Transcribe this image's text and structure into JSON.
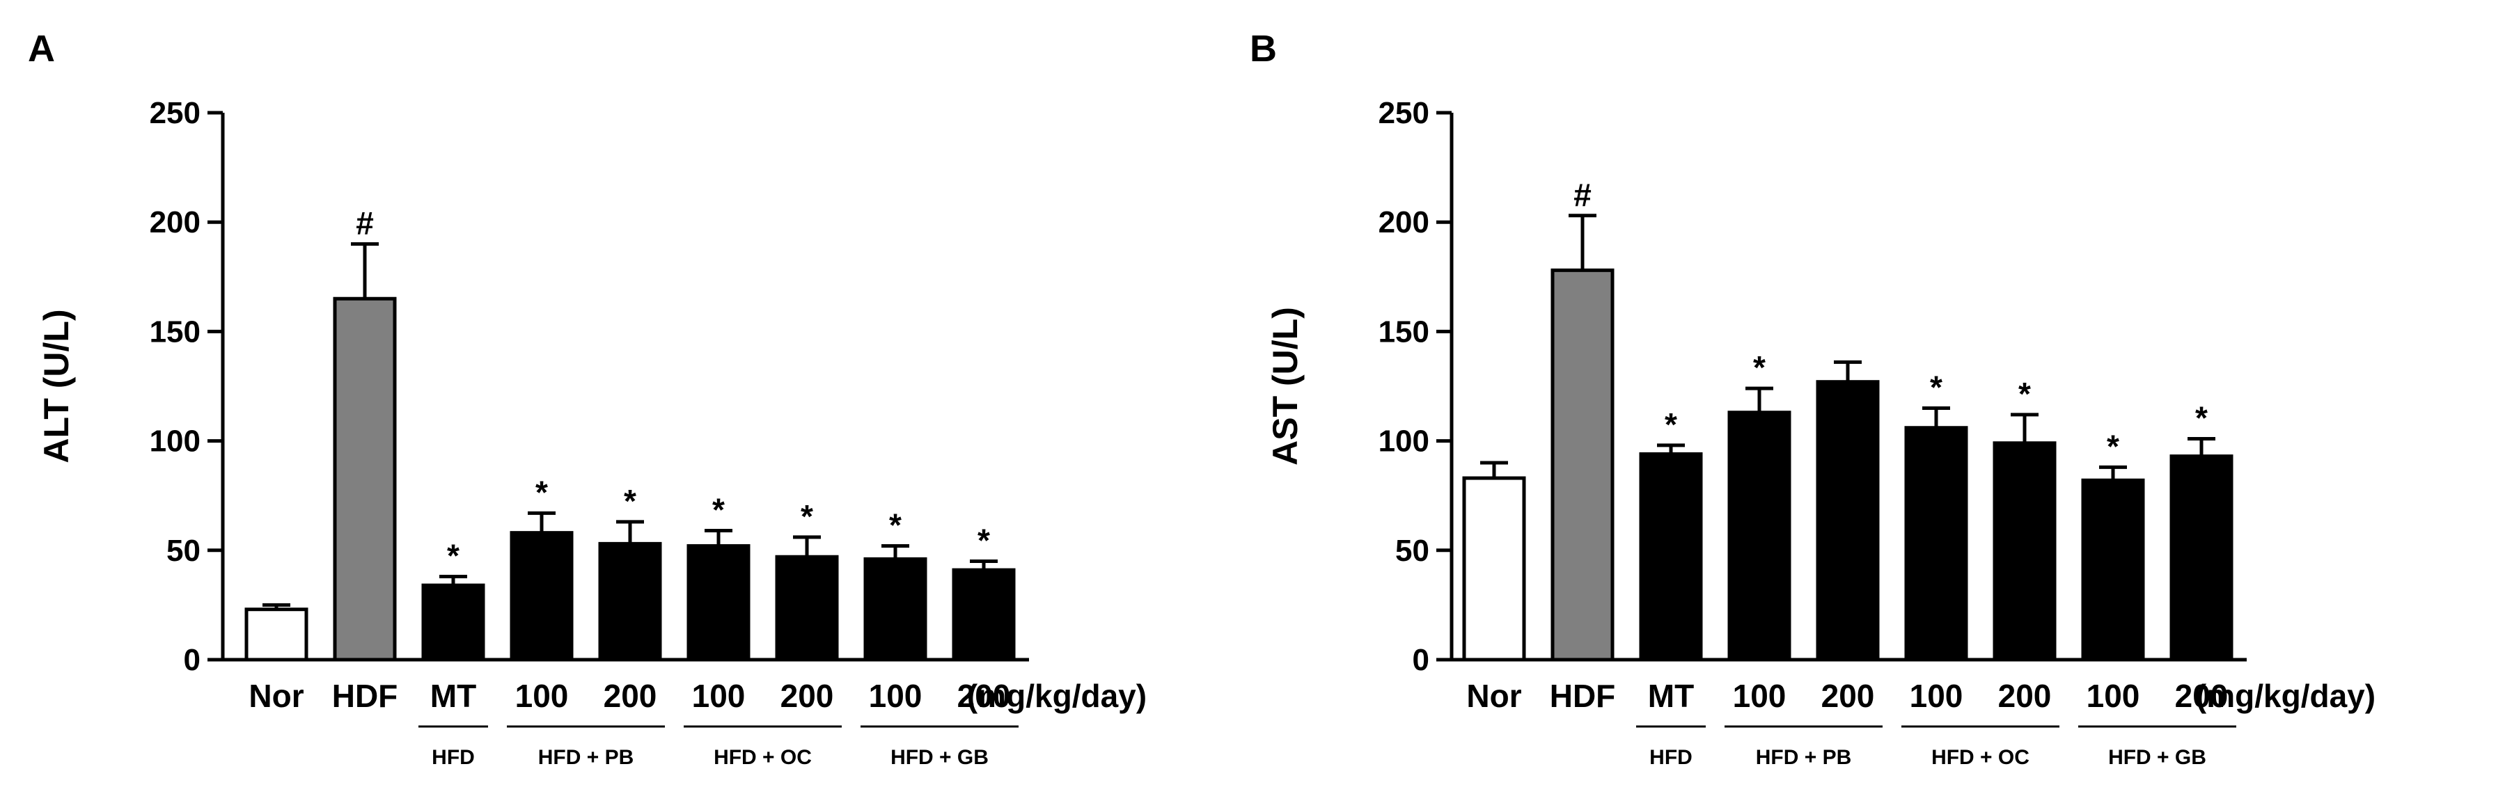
{
  "chart_data": [
    {
      "type": "bar",
      "panel": "A",
      "ylabel": "ALT (U/L)",
      "ylim": [
        0,
        250
      ],
      "yticks": [
        0,
        50,
        100,
        150,
        200,
        250
      ],
      "unit_label": "(mg/kg/day)",
      "categories": [
        "Nor",
        "HDF",
        "MT",
        "100",
        "200",
        "100",
        "200",
        "100",
        "200"
      ],
      "values": [
        23,
        165,
        34,
        58,
        53,
        52,
        47,
        46,
        41
      ],
      "errors": [
        2,
        25,
        4,
        9,
        10,
        7,
        9,
        6,
        4
      ],
      "markers": [
        "",
        "#",
        "*",
        "*",
        "*",
        "*",
        "*",
        "*",
        "*"
      ],
      "fills": [
        "#ffffff",
        "#808080",
        "#000000",
        "#000000",
        "#000000",
        "#000000",
        "#000000",
        "#000000",
        "#000000"
      ],
      "groups": [
        {
          "label": "HFD",
          "from": 2,
          "to": 2
        },
        {
          "label": "HFD + PB",
          "from": 3,
          "to": 4
        },
        {
          "label": "HFD + OC",
          "from": 5,
          "to": 6
        },
        {
          "label": "HFD + GB",
          "from": 7,
          "to": 8
        }
      ]
    },
    {
      "type": "bar",
      "panel": "B",
      "ylabel": "AST (U/L)",
      "ylim": [
        0,
        250
      ],
      "yticks": [
        0,
        50,
        100,
        150,
        200,
        250
      ],
      "unit_label": "(mg/kg/day)",
      "categories": [
        "Nor",
        "HDF",
        "MT",
        "100",
        "200",
        "100",
        "200",
        "100",
        "200"
      ],
      "values": [
        83,
        178,
        94,
        113,
        127,
        106,
        99,
        82,
        93
      ],
      "errors": [
        7,
        25,
        4,
        11,
        9,
        9,
        13,
        6,
        8
      ],
      "markers": [
        "",
        "#",
        "*",
        "*",
        "",
        "*",
        "*",
        "*",
        "*"
      ],
      "fills": [
        "#ffffff",
        "#808080",
        "#000000",
        "#000000",
        "#000000",
        "#000000",
        "#000000",
        "#000000",
        "#000000"
      ],
      "groups": [
        {
          "label": "HFD",
          "from": 2,
          "to": 2
        },
        {
          "label": "HFD + PB",
          "from": 3,
          "to": 4
        },
        {
          "label": "HFD + OC",
          "from": 5,
          "to": 6
        },
        {
          "label": "HFD + GB",
          "from": 7,
          "to": 8
        }
      ]
    }
  ]
}
